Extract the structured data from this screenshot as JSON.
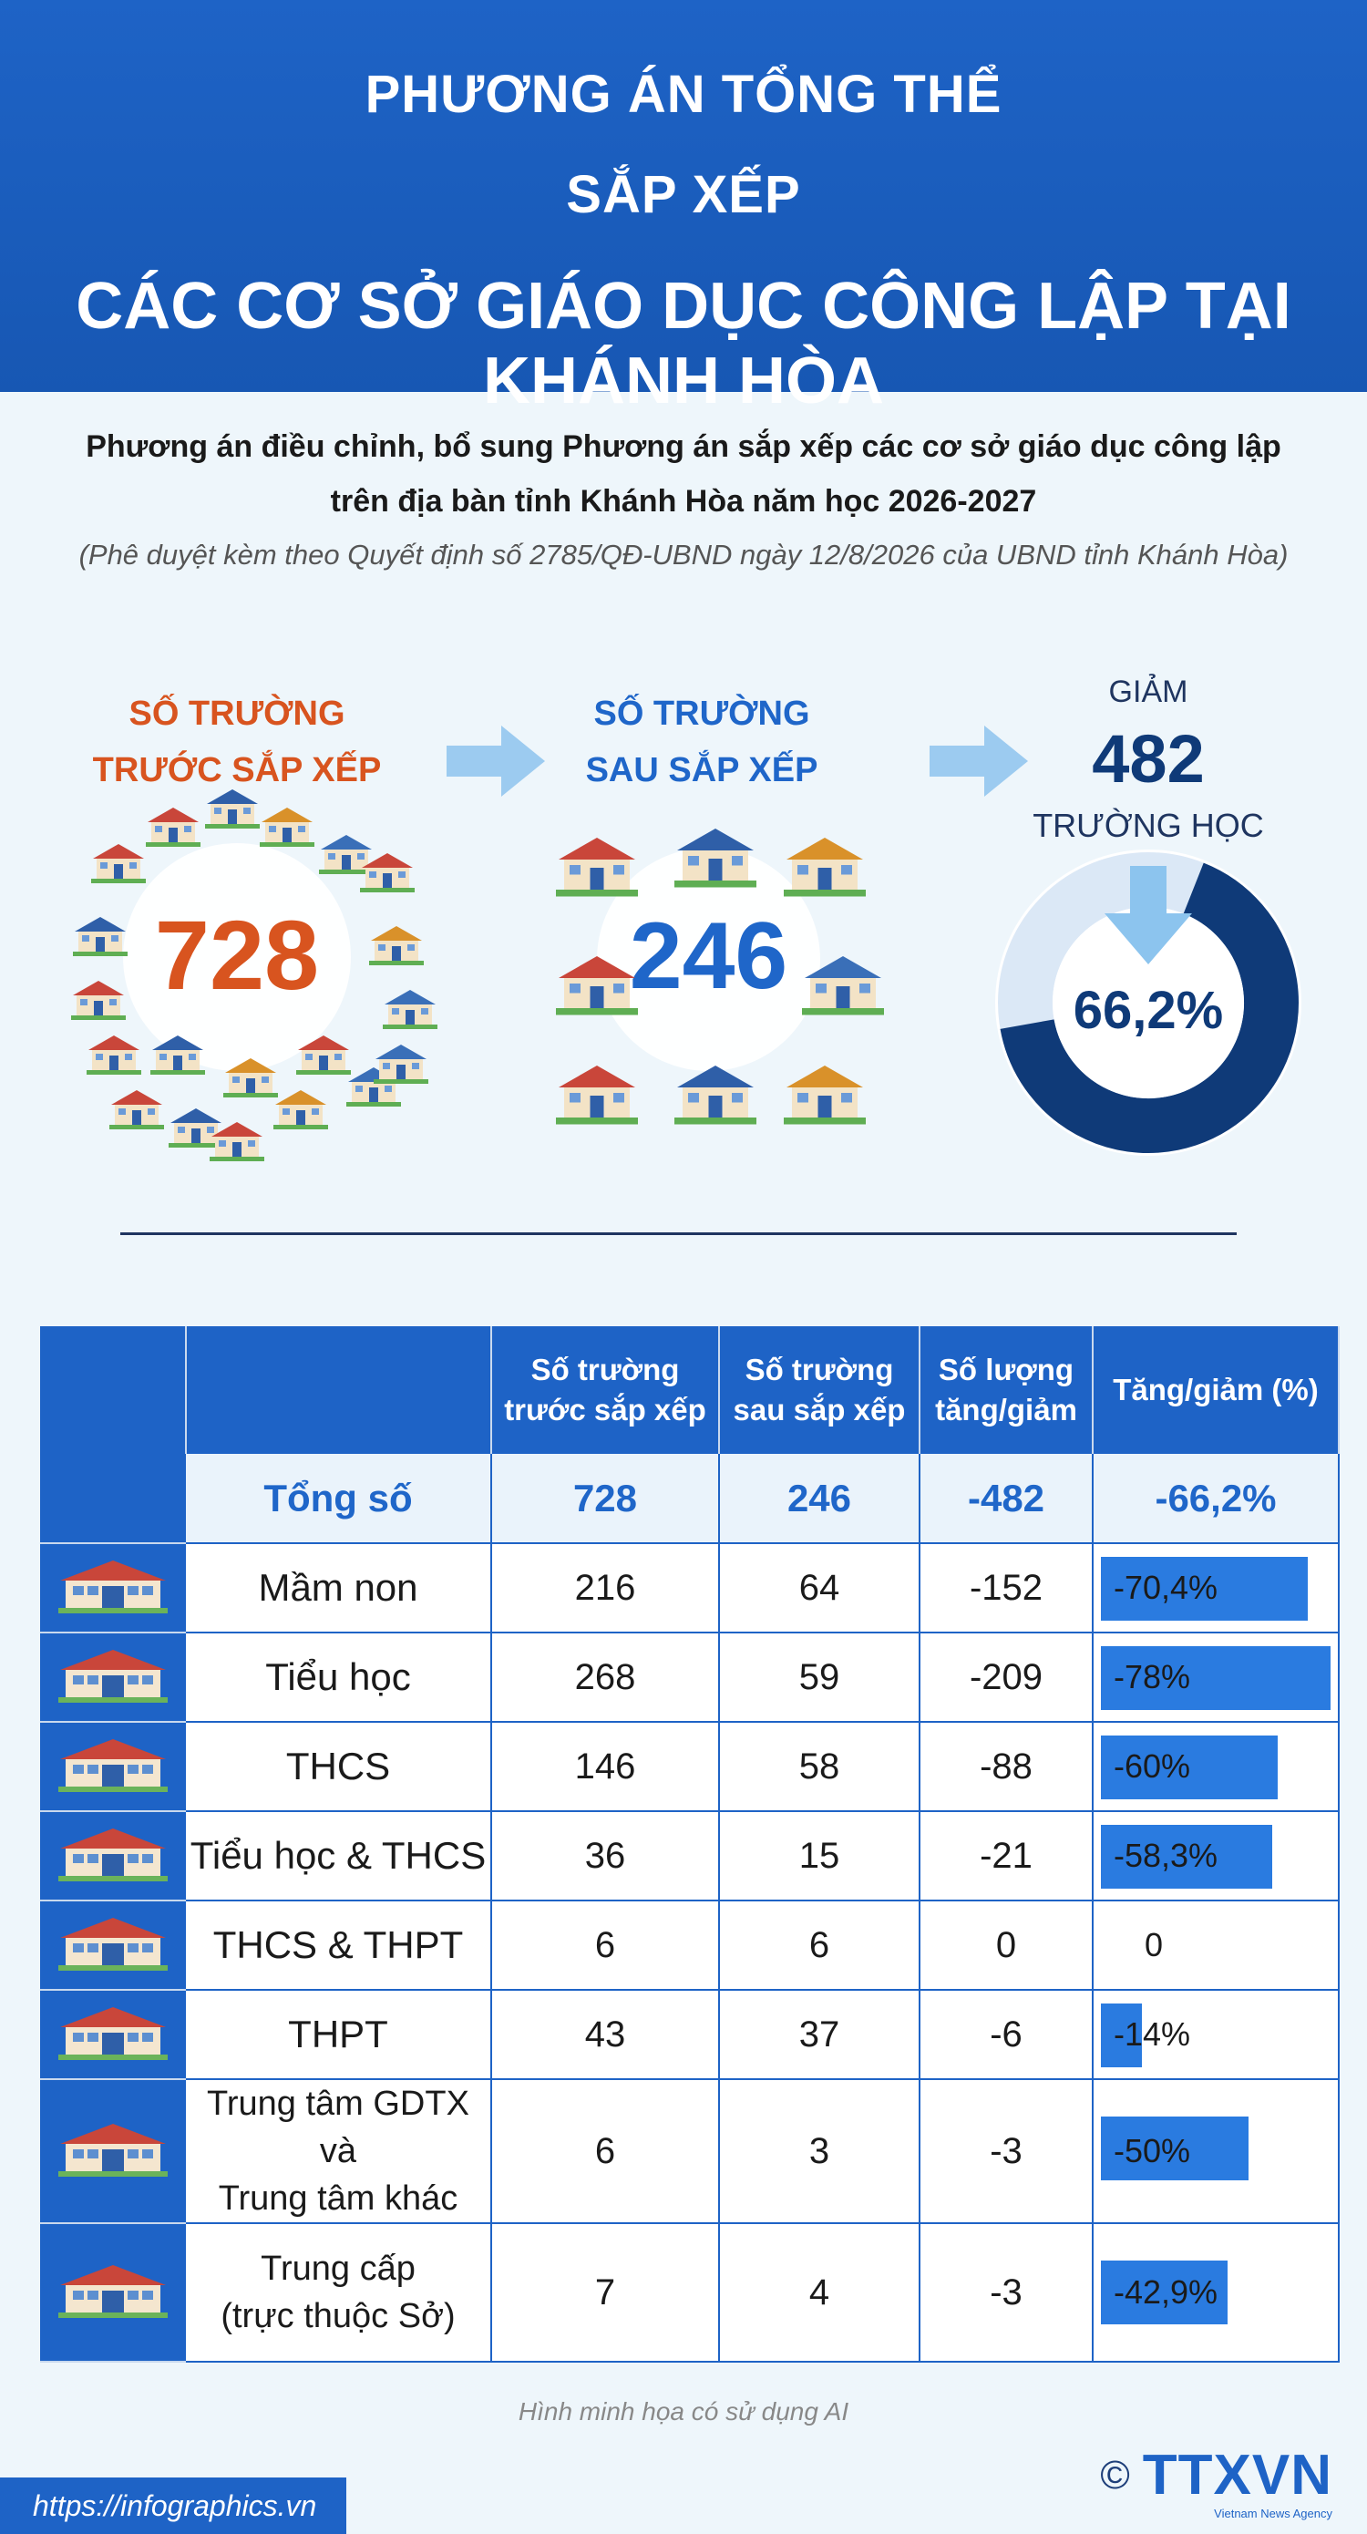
{
  "header": {
    "line1": "PHƯƠNG ÁN TỔNG THỂ",
    "line2": "SẮP XẾP",
    "line3": "CÁC CƠ SỞ GIÁO DỤC CÔNG LẬP TẠI KHÁNH HÒA"
  },
  "intro": {
    "line1": "Phương án điều chỉnh, bổ sung Phương án sắp xếp các cơ sở giáo dục công lập",
    "line2": "trên địa bàn tỉnh Khánh Hòa năm học 2026-2027",
    "line3": "(Phê duyệt kèm theo Quyết định số 2785/QĐ-UBND ngày 12/8/2026 của UBND tỉnh Khánh Hòa)"
  },
  "stats": {
    "before_title_1": "SỐ TRƯỜNG",
    "before_title_2": "TRƯỚC SẮP XẾP",
    "before_value": "728",
    "after_title_1": "SỐ TRƯỜNG",
    "after_title_2": "SAU SẮP XẾP",
    "after_value": "246",
    "reduce_label": "GIẢM",
    "reduce_value": "482",
    "reduce_unit": "TRƯỜNG HỌC",
    "reduce_percent": "66,2%",
    "reduce_fraction": 0.662
  },
  "table": {
    "headers": [
      "Số trường trước sắp xếp",
      "Số trường sau sắp xếp",
      "Số lượng tăng/giảm",
      "Tăng/giảm (%)"
    ],
    "total": {
      "name": "Tổng số",
      "before": "728",
      "after": "246",
      "change": "-482",
      "percent": "-66,2%"
    },
    "rows": [
      {
        "name": "Mầm non",
        "before": "216",
        "after": "64",
        "change": "-152",
        "percent": "-70,4%",
        "value": 70.4
      },
      {
        "name": "Tiểu học",
        "before": "268",
        "after": "59",
        "change": "-209",
        "percent": "-78%",
        "value": 78
      },
      {
        "name": "THCS",
        "before": "146",
        "after": "58",
        "change": "-88",
        "percent": "-60%",
        "value": 60
      },
      {
        "name": "Tiểu học & THCS",
        "before": "36",
        "after": "15",
        "change": "-21",
        "percent": "-58,3%",
        "value": 58.3
      },
      {
        "name": "THCS & THPT",
        "before": "6",
        "after": "6",
        "change": "0",
        "percent": "0",
        "value": 0
      },
      {
        "name": "THPT",
        "before": "43",
        "after": "37",
        "change": "-6",
        "percent": "-14%",
        "value": 14
      },
      {
        "name": "Trung tâm GDTX và Trung tâm khác",
        "name_l1": "Trung tâm GDTX và",
        "name_l2": "Trung tâm khác",
        "before": "6",
        "after": "3",
        "change": "-3",
        "percent": "-50%",
        "value": 50
      },
      {
        "name": "Trung cấp (trực thuộc Sở)",
        "name_l1": "Trung cấp",
        "name_l2": "(trực thuộc Sở)",
        "before": "7",
        "after": "4",
        "change": "-3",
        "percent": "-42,9%",
        "value": 42.9
      }
    ]
  },
  "footer": {
    "note": "Hình minh họa có sử dụng AI",
    "url": "https://infographics.vn",
    "copyright": "©",
    "brand": "TTXVN",
    "brand_sub": "Vietnam News Agency"
  },
  "colors": {
    "primary": "#1e63c6",
    "orange": "#d8541f",
    "navy": "#0f3a78",
    "bar": "#2a7be0"
  }
}
